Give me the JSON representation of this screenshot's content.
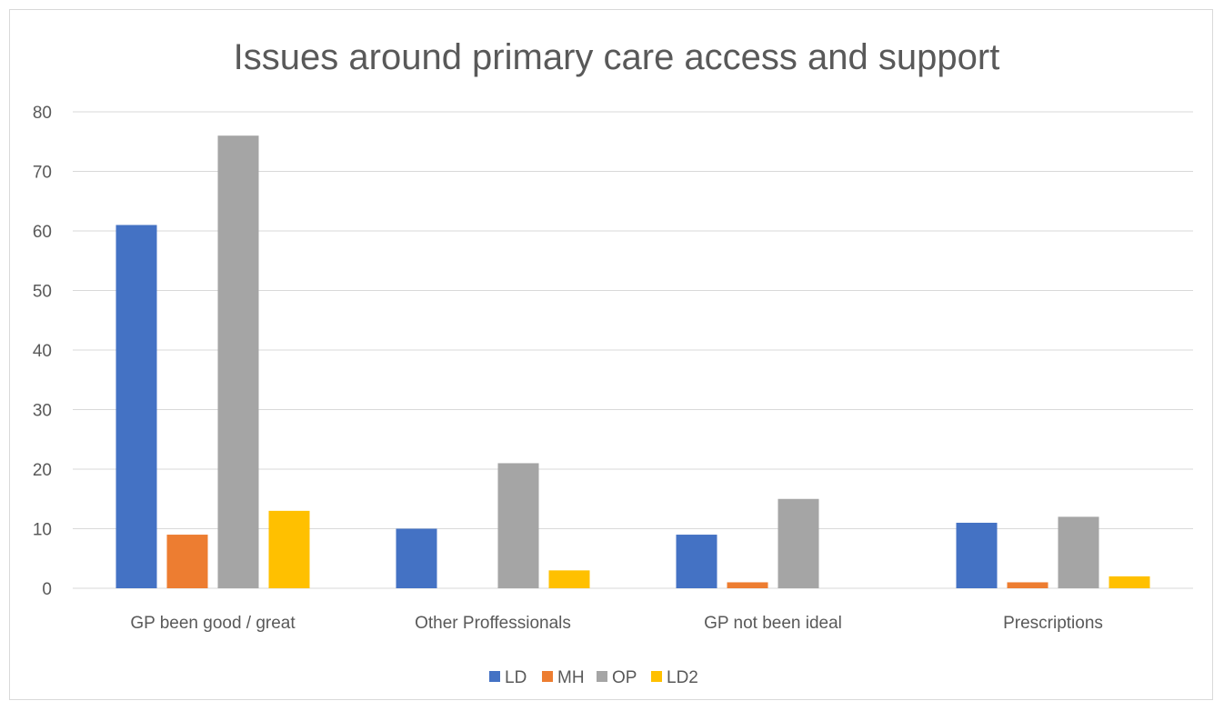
{
  "chart_data": {
    "type": "bar",
    "title": "Issues around primary care access and support",
    "xlabel": "",
    "ylabel": "",
    "ylim": [
      0,
      80
    ],
    "yticks": [
      0,
      10,
      20,
      30,
      40,
      50,
      60,
      70,
      80
    ],
    "grid": true,
    "legend_position": "bottom",
    "categories": [
      "GP been good / great",
      "Other Proffessionals",
      "GP not been ideal",
      "Prescriptions"
    ],
    "series": [
      {
        "name": "LD",
        "color": "#4472c4",
        "values": [
          61,
          10,
          9,
          11
        ]
      },
      {
        "name": "MH",
        "color": "#ed7d31",
        "values": [
          9,
          0,
          1,
          1
        ]
      },
      {
        "name": "OP",
        "color": "#a5a5a5",
        "values": [
          76,
          21,
          15,
          12
        ]
      },
      {
        "name": "LD2",
        "color": "#ffc000",
        "values": [
          13,
          3,
          0,
          2
        ]
      }
    ]
  }
}
